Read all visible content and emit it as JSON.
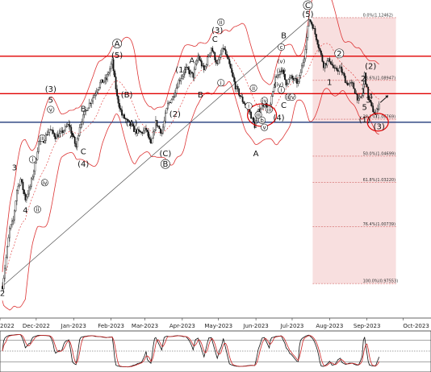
{
  "chart_data": {
    "type": "candlestick",
    "instrument_note": "",
    "x_tick_labels": [
      "2022",
      "Dec-2022",
      "Jan-2023",
      "Feb-2023",
      "Mar-2023",
      "Apr-2023",
      "May-2023",
      "Jun-2023",
      "Jul-2023",
      "Aug-2023",
      "Sep-2023",
      "Oct-2023"
    ],
    "ylim": [
      0.97,
      1.13
    ],
    "price_path": [
      [
        "2022-11-03",
        0.974
      ],
      [
        "2022-11-06",
        0.99
      ],
      [
        "2022-11-09",
        1.006
      ],
      [
        "2022-11-12",
        1.011
      ],
      [
        "2022-11-15",
        1.028
      ],
      [
        "2022-11-18",
        1.034
      ],
      [
        "2022-11-22",
        1.023
      ],
      [
        "2022-11-26",
        1.03
      ],
      [
        "2022-11-30",
        1.042
      ],
      [
        "2022-12-03",
        1.055
      ],
      [
        "2022-12-07",
        1.056
      ],
      [
        "2022-12-12",
        1.062
      ],
      [
        "2022-12-17",
        1.058
      ],
      [
        "2022-12-22",
        1.06
      ],
      [
        "2022-12-28",
        1.065
      ],
      [
        "2023-01-03",
        1.052
      ],
      [
        "2023-01-06",
        1.064
      ],
      [
        "2023-01-12",
        1.074
      ],
      [
        "2023-01-17",
        1.08
      ],
      [
        "2023-01-23",
        1.088
      ],
      [
        "2023-01-28",
        1.09
      ],
      [
        "2023-02-02",
        1.1
      ],
      [
        "2023-02-06",
        1.08
      ],
      [
        "2023-02-10",
        1.07
      ],
      [
        "2023-02-16",
        1.065
      ],
      [
        "2023-02-21",
        1.061
      ],
      [
        "2023-02-26",
        1.06
      ],
      [
        "2023-03-02",
        1.062
      ],
      [
        "2023-03-06",
        1.053
      ],
      [
        "2023-03-10",
        1.066
      ],
      [
        "2023-03-15",
        1.06
      ],
      [
        "2023-03-20",
        1.076
      ],
      [
        "2023-03-24",
        1.08
      ],
      [
        "2023-03-29",
        1.089
      ],
      [
        "2023-04-04",
        1.096
      ],
      [
        "2023-04-10",
        1.092
      ],
      [
        "2023-04-14",
        1.103
      ],
      [
        "2023-04-19",
        1.095
      ],
      [
        "2023-04-25",
        1.108
      ],
      [
        "2023-04-30",
        1.098
      ],
      [
        "2023-05-05",
        1.108
      ],
      [
        "2023-05-10",
        1.098
      ],
      [
        "2023-05-15",
        1.086
      ],
      [
        "2023-05-21",
        1.078
      ],
      [
        "2023-05-26",
        1.073
      ],
      [
        "2023-05-31",
        1.064
      ],
      [
        "2023-06-03",
        1.072
      ],
      [
        "2023-06-08",
        1.077
      ],
      [
        "2023-06-12",
        1.072
      ],
      [
        "2023-06-17",
        1.09
      ],
      [
        "2023-06-22",
        1.096
      ],
      [
        "2023-06-26",
        1.088
      ],
      [
        "2023-06-30",
        1.091
      ],
      [
        "2023-07-06",
        1.088
      ],
      [
        "2023-07-11",
        1.103
      ],
      [
        "2023-07-15",
        1.124
      ],
      [
        "2023-07-18",
        1.12
      ],
      [
        "2023-07-22",
        1.111
      ],
      [
        "2023-07-27",
        1.098
      ],
      [
        "2023-08-01",
        1.101
      ],
      [
        "2023-08-05",
        1.095
      ],
      [
        "2023-08-10",
        1.096
      ],
      [
        "2023-08-15",
        1.088
      ],
      [
        "2023-08-20",
        1.087
      ],
      [
        "2023-08-25",
        1.078
      ],
      [
        "2023-08-28",
        1.081
      ],
      [
        "2023-08-30",
        1.093
      ],
      [
        "2023-09-02",
        1.08
      ],
      [
        "2023-09-05",
        1.074
      ],
      [
        "2023-09-08",
        1.07
      ],
      [
        "2023-09-11",
        1.077
      ]
    ],
    "horizontal_lines": [
      {
        "level": 1.103,
        "color": "#e00000"
      },
      {
        "level": 1.082,
        "color": "#e00000"
      },
      {
        "level": 1.066,
        "color": "#1f3a7a"
      }
    ],
    "fibonacci": {
      "x_start": "2023-07-18",
      "x_end": "2023-09-25",
      "levels": [
        {
          "label": "0.0%(1.12462)",
          "price": 1.12462
        },
        {
          "label": "23.6%(1.08947)",
          "price": 1.08947
        },
        {
          "label": "38.2%(1.06769)",
          "price": 1.06769
        },
        {
          "label": "50.0%(1.04699)",
          "price": 1.04699
        },
        {
          "label": "61.8%(1.03220)",
          "price": 1.0322
        },
        {
          "label": "76.4%(1.00739)",
          "price": 1.00739
        },
        {
          "label": "100.0%(0.97553)",
          "price": 0.97553
        }
      ]
    },
    "trendline": {
      "from": [
        "2022-11-03",
        0.974
      ],
      "to": [
        "2023-07-15",
        1.124
      ]
    },
    "wave_labels": [
      {
        "text": "2",
        "x": "2022-11-03",
        "y": 0.9685,
        "size": "big"
      },
      {
        "text": "3",
        "x": "2022-11-13",
        "y": 1.039,
        "size": "big"
      },
      {
        "text": "4",
        "x": "2022-11-22",
        "y": 1.015,
        "size": "big"
      },
      {
        "text": "(3)",
        "x": "2022-12-13",
        "y": 1.083,
        "size": "big"
      },
      {
        "text": "5",
        "x": "2022-12-13",
        "y": 1.077,
        "size": "big"
      },
      {
        "text": "A",
        "x": "2022-12-31",
        "y": 1.057,
        "size": "big"
      },
      {
        "text": "B",
        "x": "2023-01-09",
        "y": 1.072,
        "size": "big"
      },
      {
        "text": "C",
        "x": "2023-01-09",
        "y": 1.048,
        "size": "big"
      },
      {
        "text": "(4)",
        "x": "2023-01-09",
        "y": 1.041,
        "size": "big"
      },
      {
        "text": "A",
        "x": "2023-02-06",
        "y": 1.1085,
        "size": "big",
        "circled": true
      },
      {
        "text": "(5)",
        "x": "2023-02-06",
        "y": 1.102,
        "size": "big"
      },
      {
        "text": "(B)",
        "x": "2023-02-14",
        "y": 1.08,
        "size": "big"
      },
      {
        "text": "(A)",
        "x": "2023-02-18",
        "y": 1.064,
        "size": "big"
      },
      {
        "text": "(C)",
        "x": "2023-03-18",
        "y": 1.047,
        "size": "big"
      },
      {
        "text": "B",
        "x": "2023-03-18",
        "y": 1.041,
        "size": "big",
        "circled": true
      },
      {
        "text": "(2)",
        "x": "2023-03-26",
        "y": 1.069,
        "size": "big"
      },
      {
        "text": "(1)",
        "x": "2023-03-31",
        "y": 1.094,
        "size": "big"
      },
      {
        "text": "A",
        "x": "2023-04-09",
        "y": 1.099,
        "size": "big"
      },
      {
        "text": "B",
        "x": "2023-04-16",
        "y": 1.08,
        "size": "big"
      },
      {
        "text": "(3)",
        "x": "2023-04-30",
        "y": 1.116,
        "size": "big"
      },
      {
        "text": "C",
        "x": "2023-04-28",
        "y": 1.111,
        "size": "big"
      },
      {
        "text": "(4)",
        "x": "2023-06-20",
        "y": 1.067,
        "size": "big"
      },
      {
        "text": "A",
        "x": "2023-06-01",
        "y": 1.047,
        "size": "big"
      },
      {
        "text": "B",
        "x": "2023-06-24",
        "y": 1.113,
        "size": "big"
      },
      {
        "text": "C",
        "x": "2023-06-24",
        "y": 1.074,
        "size": "big"
      },
      {
        "text": "C",
        "x": "2023-07-14",
        "y": 1.13,
        "size": "big",
        "circled": true
      },
      {
        "text": "(5)",
        "x": "2023-07-14",
        "y": 1.125,
        "size": "big"
      },
      {
        "text": "1",
        "x": "2023-08-01",
        "y": 1.087,
        "size": "big"
      },
      {
        "text": "2",
        "x": "2023-08-09",
        "y": 1.103,
        "size": "big",
        "circled": true
      },
      {
        "text": "1",
        "x": "2023-08-29",
        "y": 1.082,
        "size": "big"
      },
      {
        "text": "2",
        "x": "2023-08-29",
        "y": 1.089,
        "size": "big"
      },
      {
        "text": "(2)",
        "x": "2023-09-04",
        "y": 1.096,
        "size": "big"
      },
      {
        "text": "3",
        "x": "2023-09-02",
        "y": 1.077,
        "size": "big"
      },
      {
        "text": "5",
        "x": "2023-08-30",
        "y": 1.073,
        "size": "big"
      },
      {
        "text": "4",
        "x": "2023-09-04",
        "y": 1.079,
        "size": "big"
      },
      {
        "text": "(1)",
        "x": "2023-08-30",
        "y": 1.066,
        "size": "big"
      },
      {
        "text": "(3)",
        "x": "2023-09-11",
        "y": 1.062,
        "size": "big"
      },
      {
        "text": "i",
        "x": "2022-11-28",
        "y": 1.044,
        "size": "small",
        "circled": true
      },
      {
        "text": "ii",
        "x": "2022-12-02",
        "y": 1.016,
        "size": "small",
        "circled": true
      },
      {
        "text": "iii",
        "x": "2022-12-06",
        "y": 1.056,
        "size": "small",
        "circled": true
      },
      {
        "text": "iv",
        "x": "2022-12-08",
        "y": 1.031,
        "size": "small",
        "circled": true
      },
      {
        "text": "v",
        "x": "2022-12-13",
        "y": 1.072,
        "size": "small",
        "circled": true
      },
      {
        "text": "i",
        "x": "2023-05-03",
        "y": 1.087,
        "size": "small",
        "circled": true
      },
      {
        "text": "ii",
        "x": "2023-05-03",
        "y": 1.121,
        "size": "small",
        "circled": true
      },
      {
        "text": "i",
        "x": "2023-05-26",
        "y": 1.074,
        "size": "small",
        "circled": true
      },
      {
        "text": "ii",
        "x": "2023-05-30",
        "y": 1.084,
        "size": "small",
        "circled": true
      },
      {
        "text": "iii",
        "x": "2023-06-03",
        "y": 1.069,
        "size": "small",
        "circled": true
      },
      {
        "text": "iv",
        "x": "2023-06-08",
        "y": 1.077,
        "size": "small",
        "circled": true
      },
      {
        "text": "v",
        "x": "2023-06-08",
        "y": 1.062,
        "size": "small",
        "circled": true
      },
      {
        "text": "b",
        "x": "2023-06-06",
        "y": 1.066,
        "size": "small",
        "circled": true
      },
      {
        "text": "iii",
        "x": "2023-06-12",
        "y": 1.072,
        "size": "small",
        "circled": true
      },
      {
        "text": "c",
        "x": "2023-06-22",
        "y": 1.107,
        "size": "small",
        "circled": true
      },
      {
        "text": "(v)",
        "x": "2023-06-22",
        "y": 1.099,
        "size": "small"
      },
      {
        "text": "(iii)",
        "x": "2023-06-22",
        "y": 1.094,
        "size": "small"
      },
      {
        "text": "(iv)",
        "x": "2023-06-20",
        "y": 1.086,
        "size": "small"
      },
      {
        "text": "i",
        "x": "2023-06-22",
        "y": 1.083,
        "size": "small",
        "circled": true
      },
      {
        "text": "iii",
        "x": "2023-06-28",
        "y": 1.079,
        "size": "small",
        "circled": true
      },
      {
        "text": "iv",
        "x": "2023-07-01",
        "y": 1.079,
        "size": "small",
        "circled": true
      }
    ]
  }
}
